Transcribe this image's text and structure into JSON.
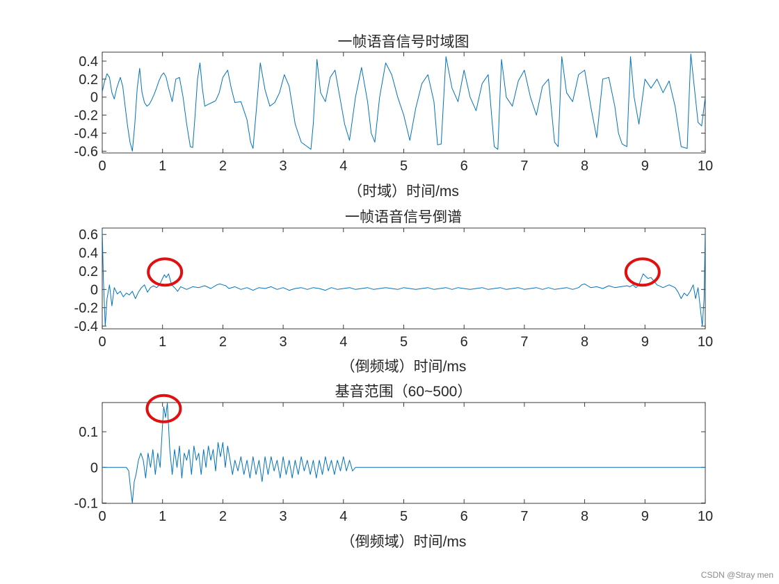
{
  "watermark": "CSDN @Stray men",
  "colors": {
    "line": "#0072bd",
    "annotation": "#e01010",
    "axis": "#262626"
  },
  "chart_data": [
    {
      "type": "line",
      "title": "一帧语音信号时域图",
      "xlabel": "（时域）时间/ms",
      "ylabel": "",
      "xlim": [
        0,
        10
      ],
      "ylim": [
        -0.62,
        0.5
      ],
      "xticks": [
        0,
        1,
        2,
        3,
        4,
        5,
        6,
        7,
        8,
        9,
        10
      ],
      "yticks": [
        -0.6,
        -0.4,
        -0.2,
        0,
        0.2,
        0.4
      ],
      "ytick_labels": [
        "-0.6",
        "-0.4",
        "-0.2",
        "0",
        "0.2",
        "0.4"
      ],
      "series": [
        {
          "x": [
            0,
            0.04,
            0.08,
            0.12,
            0.16,
            0.2,
            0.24,
            0.3,
            0.34,
            0.38,
            0.42,
            0.46,
            0.5,
            0.54,
            0.58,
            0.62,
            0.66,
            0.7,
            0.74,
            0.78,
            0.82,
            0.86,
            0.9,
            0.94,
            0.98,
            1.02,
            1.06,
            1.1,
            1.16,
            1.22,
            1.28,
            1.34,
            1.4,
            1.46,
            1.5,
            1.54,
            1.58,
            1.62,
            1.66,
            1.7,
            1.76,
            1.82,
            1.88,
            1.94,
            2.0,
            2.08,
            2.14,
            2.2,
            2.3,
            2.4,
            2.46,
            2.5,
            2.56,
            2.62,
            2.7,
            2.78,
            2.86,
            2.94,
            3.02,
            3.1,
            3.2,
            3.3,
            3.4,
            3.46,
            3.5,
            3.56,
            3.62,
            3.7,
            3.78,
            3.86,
            3.94,
            4.02,
            4.1,
            4.2,
            4.3,
            4.4,
            4.46,
            4.52,
            4.6,
            4.7,
            4.8,
            4.9,
            5.0,
            5.1,
            5.2,
            5.3,
            5.4,
            5.5,
            5.56,
            5.62,
            5.7,
            5.8,
            5.9,
            6.0,
            6.1,
            6.2,
            6.3,
            6.4,
            6.5,
            6.56,
            6.62,
            6.7,
            6.8,
            6.9,
            7.0,
            7.1,
            7.2,
            7.3,
            7.4,
            7.5,
            7.56,
            7.62,
            7.7,
            7.8,
            7.9,
            8.0,
            8.1,
            8.2,
            8.3,
            8.4,
            8.5,
            8.56,
            8.62,
            8.7,
            8.76,
            8.82,
            8.9,
            9.0,
            9.1,
            9.2,
            9.3,
            9.4,
            9.5,
            9.6,
            9.7,
            9.76,
            9.82,
            9.88,
            9.94,
            10.0
          ],
          "y": [
            0.06,
            0.18,
            0.26,
            0.22,
            0.05,
            -0.02,
            0.1,
            0.22,
            0.12,
            -0.1,
            -0.32,
            -0.5,
            -0.6,
            -0.3,
            0.1,
            0.32,
            0.05,
            -0.06,
            -0.1,
            -0.08,
            -0.03,
            0.03,
            0.1,
            0.18,
            0.24,
            0.27,
            0.22,
            0.1,
            -0.05,
            0.2,
            0.22,
            0.0,
            -0.3,
            -0.55,
            -0.56,
            -0.2,
            0.2,
            0.38,
            0.1,
            -0.1,
            -0.08,
            -0.06,
            -0.04,
            0.05,
            0.22,
            0.3,
            0.1,
            -0.06,
            -0.05,
            -0.25,
            -0.5,
            -0.57,
            -0.1,
            0.38,
            0.08,
            -0.1,
            -0.06,
            0.05,
            0.25,
            0.12,
            -0.3,
            -0.5,
            -0.55,
            -0.58,
            -0.3,
            0.42,
            0.05,
            -0.05,
            0.22,
            0.3,
            0.0,
            -0.3,
            -0.48,
            0.0,
            0.33,
            -0.05,
            -0.4,
            -0.5,
            0.0,
            0.38,
            0.25,
            0.0,
            -0.2,
            -0.48,
            -0.12,
            0.15,
            0.25,
            -0.05,
            -0.53,
            -0.52,
            0.45,
            0.1,
            -0.05,
            0.3,
            0.0,
            -0.15,
            0.15,
            0.25,
            -0.55,
            -0.58,
            0.42,
            0.0,
            -0.1,
            0.18,
            0.3,
            0.0,
            -0.2,
            0.12,
            0.2,
            -0.5,
            -0.55,
            0.45,
            0.05,
            -0.05,
            0.25,
            0.3,
            -0.1,
            -0.45,
            0.2,
            0.22,
            -0.1,
            -0.4,
            -0.52,
            -0.55,
            0.45,
            0.0,
            -0.3,
            0.2,
            0.1,
            0.2,
            0.05,
            0.18,
            -0.1,
            -0.55,
            -0.57,
            0.48,
            0.1,
            -0.28,
            -0.32,
            0.0
          ]
        }
      ]
    },
    {
      "type": "line",
      "title": "一帧语音信号倒谱",
      "xlabel": "（倒频域）时间/ms",
      "ylabel": "",
      "xlim": [
        0,
        10
      ],
      "ylim": [
        -0.43,
        0.67
      ],
      "xticks": [
        0,
        1,
        2,
        3,
        4,
        5,
        6,
        7,
        8,
        9,
        10
      ],
      "yticks": [
        -0.4,
        -0.2,
        0,
        0.2,
        0.4,
        0.6
      ],
      "ytick_labels": [
        "-0.4",
        "-0.2",
        "0",
        "0.2",
        "0.4",
        "0.6"
      ],
      "annotations": [
        {
          "shape": "circle",
          "x": 1.04,
          "y": 0.19
        },
        {
          "shape": "circle",
          "x": 8.96,
          "y": 0.19
        }
      ],
      "series": [
        {
          "x": [
            0,
            0.02,
            0.05,
            0.08,
            0.12,
            0.16,
            0.2,
            0.25,
            0.3,
            0.35,
            0.4,
            0.45,
            0.5,
            0.55,
            0.6,
            0.65,
            0.7,
            0.75,
            0.8,
            0.85,
            0.9,
            0.95,
            1.0,
            1.03,
            1.06,
            1.1,
            1.15,
            1.2,
            1.25,
            1.3,
            1.4,
            1.5,
            1.6,
            1.7,
            1.8,
            1.9,
            1.95,
            2.0,
            2.05,
            2.1,
            2.2,
            2.3,
            2.4,
            2.5,
            2.6,
            2.7,
            2.8,
            2.9,
            3.0,
            3.1,
            3.2,
            3.3,
            3.4,
            3.5,
            3.6,
            3.7,
            3.8,
            3.9,
            4.0,
            4.1,
            4.2,
            4.3,
            4.4,
            4.5,
            4.6,
            4.7,
            4.8,
            4.9,
            5.0,
            5.1,
            5.2,
            5.3,
            5.4,
            5.5,
            5.6,
            5.7,
            5.8,
            5.9,
            6.0,
            6.1,
            6.2,
            6.3,
            6.4,
            6.5,
            6.6,
            6.7,
            6.8,
            6.9,
            7.0,
            7.1,
            7.2,
            7.3,
            7.4,
            7.5,
            7.6,
            7.7,
            7.8,
            7.9,
            7.95,
            8.0,
            8.05,
            8.1,
            8.2,
            8.3,
            8.4,
            8.5,
            8.6,
            8.7,
            8.75,
            8.8,
            8.85,
            8.9,
            8.94,
            8.97,
            9.0,
            9.05,
            9.1,
            9.2,
            9.3,
            9.4,
            9.5,
            9.55,
            9.6,
            9.65,
            9.7,
            9.75,
            9.8,
            9.84,
            9.88,
            9.92,
            9.95,
            9.98,
            10.0
          ],
          "y": [
            0.65,
            0.1,
            -0.4,
            -0.1,
            0.05,
            -0.18,
            0.02,
            -0.05,
            -0.02,
            -0.08,
            -0.04,
            -0.06,
            -0.02,
            -0.1,
            -0.03,
            0.02,
            0.05,
            -0.03,
            0.02,
            0.04,
            0.02,
            0.05,
            0.12,
            0.16,
            0.13,
            0.17,
            0.05,
            0.02,
            -0.02,
            0.03,
            0.0,
            0.03,
            0.02,
            0.04,
            0.01,
            0.05,
            0.06,
            0.05,
            0.04,
            0.01,
            0.03,
            0.0,
            0.02,
            -0.01,
            0.02,
            0.01,
            0.03,
            0.0,
            0.02,
            -0.01,
            0.01,
            0.02,
            0.0,
            0.02,
            0.01,
            -0.01,
            0.02,
            0.0,
            0.01,
            0.02,
            0.0,
            0.01,
            0.02,
            0.0,
            0.01,
            0.02,
            0.01,
            0.0,
            0.02,
            0.01,
            0.0,
            0.01,
            0.02,
            0.0,
            0.01,
            0.02,
            0.0,
            0.02,
            0.01,
            0.0,
            0.01,
            0.02,
            0.0,
            0.01,
            0.02,
            0.0,
            0.01,
            0.02,
            0.0,
            0.01,
            0.02,
            0.0,
            0.02,
            0.0,
            0.01,
            0.02,
            0.0,
            0.02,
            0.05,
            0.06,
            0.04,
            0.02,
            0.03,
            0.01,
            0.04,
            0.02,
            0.03,
            0.04,
            0.03,
            0.05,
            0.02,
            0.05,
            0.12,
            0.17,
            0.15,
            0.12,
            0.13,
            0.05,
            0.02,
            0.05,
            0.02,
            -0.03,
            -0.1,
            -0.04,
            -0.07,
            -0.02,
            0.05,
            -0.1,
            0.02,
            -0.22,
            -0.4,
            -0.1,
            0.65
          ]
        }
      ]
    },
    {
      "type": "line",
      "title": "基音范围（60~500）",
      "xlabel": "（倒频域）时间/ms",
      "ylabel": "",
      "xlim": [
        0,
        10
      ],
      "ylim": [
        -0.101,
        0.182
      ],
      "xticks": [
        0,
        1,
        2,
        3,
        4,
        5,
        6,
        7,
        8,
        9,
        10
      ],
      "yticks": [
        -0.1,
        0,
        0.1
      ],
      "ytick_labels": [
        "-0.1",
        "0",
        "0.1"
      ],
      "annotations": [
        {
          "shape": "circle",
          "x": 1.02,
          "y": 0.165
        }
      ],
      "series": [
        {
          "x": [
            0,
            0.4,
            0.44,
            0.47,
            0.5,
            0.53,
            0.56,
            0.6,
            0.64,
            0.68,
            0.72,
            0.76,
            0.8,
            0.84,
            0.88,
            0.92,
            0.96,
            1.0,
            1.02,
            1.05,
            1.08,
            1.12,
            1.16,
            1.2,
            1.24,
            1.28,
            1.32,
            1.36,
            1.4,
            1.44,
            1.48,
            1.52,
            1.56,
            1.6,
            1.64,
            1.68,
            1.72,
            1.76,
            1.8,
            1.84,
            1.88,
            1.92,
            1.96,
            2.0,
            2.04,
            2.08,
            2.12,
            2.16,
            2.2,
            2.25,
            2.3,
            2.35,
            2.4,
            2.45,
            2.5,
            2.55,
            2.6,
            2.65,
            2.7,
            2.75,
            2.8,
            2.85,
            2.9,
            2.95,
            3.0,
            3.05,
            3.1,
            3.15,
            3.2,
            3.25,
            3.3,
            3.35,
            3.4,
            3.45,
            3.5,
            3.55,
            3.6,
            3.65,
            3.7,
            3.75,
            3.8,
            3.85,
            3.9,
            3.95,
            4.0,
            4.05,
            4.1,
            4.15,
            4.2,
            4.3,
            10.0
          ],
          "y": [
            0,
            0,
            -0.01,
            -0.06,
            -0.1,
            -0.04,
            -0.02,
            0.02,
            0.04,
            0.02,
            -0.03,
            0.04,
            0.0,
            0.05,
            -0.02,
            0.04,
            0.0,
            0.12,
            0.17,
            0.14,
            0.18,
            0.05,
            -0.02,
            0.05,
            0.0,
            0.06,
            -0.03,
            0.04,
            0.02,
            0.05,
            -0.02,
            0.06,
            0.02,
            0.04,
            -0.02,
            0.05,
            0.0,
            0.06,
            0.02,
            0.05,
            -0.01,
            0.07,
            0.03,
            0.07,
            0.0,
            0.06,
            0.02,
            -0.02,
            0.02,
            -0.01,
            0.03,
            -0.02,
            0.02,
            -0.03,
            0.03,
            -0.02,
            0.02,
            -0.04,
            0.03,
            -0.02,
            0.03,
            -0.01,
            0.02,
            -0.03,
            0.03,
            -0.02,
            0.02,
            -0.03,
            0.02,
            -0.02,
            0.03,
            -0.01,
            0.02,
            -0.02,
            0.02,
            -0.03,
            0.02,
            -0.02,
            0.03,
            -0.01,
            0.02,
            -0.02,
            0.02,
            -0.01,
            0.03,
            -0.01,
            0.02,
            -0.01,
            0.0,
            0.0,
            0.0
          ]
        }
      ]
    }
  ]
}
